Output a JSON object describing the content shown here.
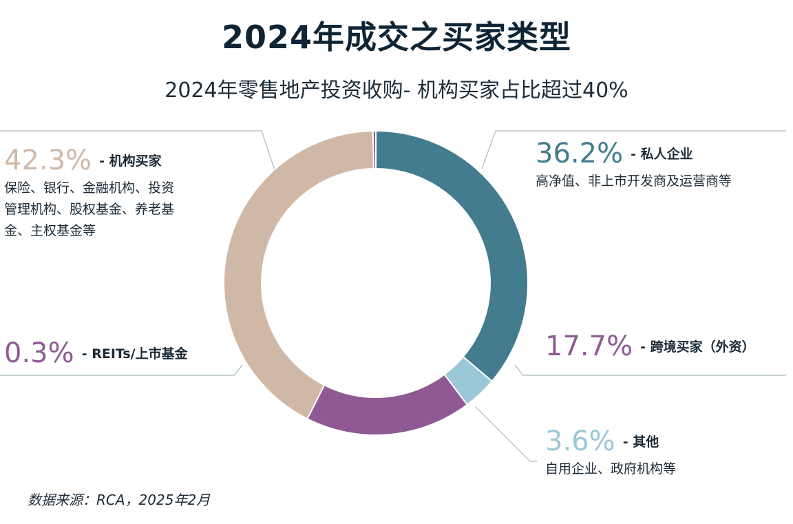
{
  "title": "2024年成交之买家类型",
  "subtitle": "2024年零售地产投资收购- 机构买家占比超过40%",
  "source": "数据来源：RCA，2025年2月",
  "colors": {
    "private": "#437c8f",
    "others": "#9ac8d7",
    "cross_border": "#8f5a93",
    "institutional": "#d0b8a6",
    "reits": "#8f5a93",
    "leader_line": "#b9c6cc"
  },
  "labels": {
    "institutional": {
      "pct": "42.3%",
      "cat": "- 机构买家",
      "desc_lines": [
        "保险、银行、金融机构、投资",
        "管理机构、股权基金、养老基",
        "金、主权基金等"
      ]
    },
    "private": {
      "pct": "36.2%",
      "cat": "- 私人企业",
      "desc_lines": [
        "高净值、非上市开发商及运营商等"
      ]
    },
    "reits": {
      "pct": "0.3%",
      "cat": "- REITs/上市基金"
    },
    "cross_border": {
      "pct": "17.7%",
      "cat": "- 跨境买家（外资）"
    },
    "others": {
      "pct": "3.6%",
      "cat": "- 其他",
      "desc_lines": [
        "自用企业、政府机构等"
      ]
    }
  },
  "chart_data": {
    "type": "pie",
    "donut": true,
    "title": "2024年成交之买家类型",
    "subtitle": "2024年零售地产投资收购- 机构买家占比超过40%",
    "start_angle_deg": 0,
    "direction": "clockwise",
    "slices": [
      {
        "key": "private",
        "label": "私人企业",
        "value": 36.2,
        "color": "#437c8f"
      },
      {
        "key": "others",
        "label": "其他",
        "value": 3.6,
        "color": "#9ac8d7"
      },
      {
        "key": "cross_border",
        "label": "跨境买家（外资）",
        "value": 17.7,
        "color": "#8f5a93"
      },
      {
        "key": "institutional",
        "label": "机构买家",
        "value": 42.3,
        "color": "#d0b8a6"
      },
      {
        "key": "reits",
        "label": "REITs/上市基金",
        "value": 0.3,
        "color": "#8f5a93"
      }
    ]
  }
}
